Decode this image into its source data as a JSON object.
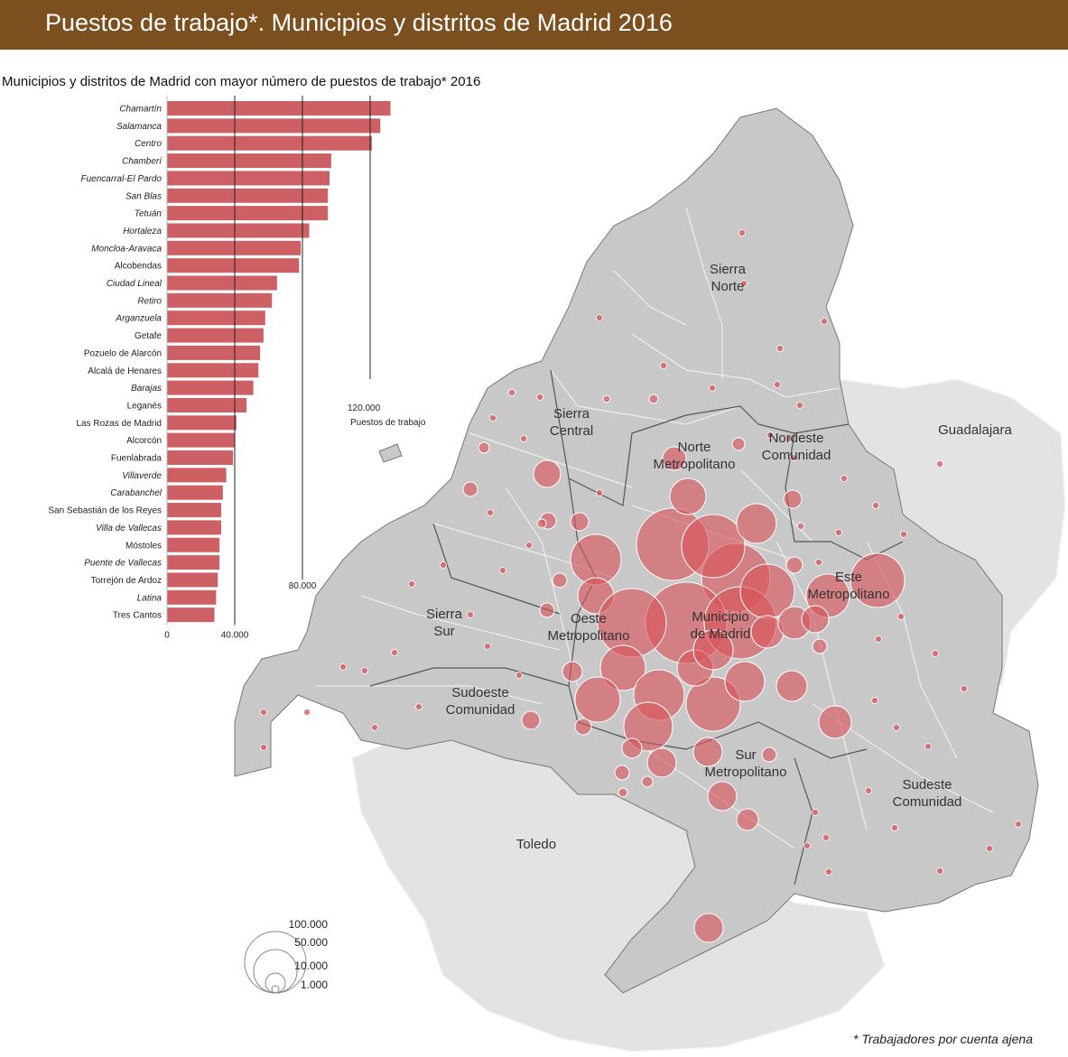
{
  "header": {
    "title": "Puestos de trabajo*. Municipios y distritos de Madrid 2016"
  },
  "colors": {
    "header_bg": "#7b4f1e",
    "bar": "#cc6064",
    "bubble": "#d9545a",
    "map_region": "#c8c8c8",
    "map_outside": "#e3e3e3"
  },
  "chart_data": {
    "type": "bar",
    "orientation": "horizontal",
    "title": "Municipios y distritos de Madrid con mayor número de puestos de trabajo* 2016",
    "categories": [
      "Chamartín",
      "Salamanca",
      "Centro",
      "Chamberí",
      "Fuencarral-El Pardo",
      "San Blas",
      "Tetuán",
      "Hortaleza",
      "Moncloa-Aravaca",
      "Alcobendas",
      "Ciudad Lineal",
      "Retiro",
      "Arganzuela",
      "Getafe",
      "Pozuelo de Alarcón",
      "Alcalá de Henares",
      "Barajas",
      "Leganés",
      "Las Rozas de Madrid",
      "Alcorcón",
      "Fuenlabrada",
      "Villaverde",
      "Carabanchel",
      "San Sebastián de los Reyes",
      "Villa de Vallecas",
      "Móstoles",
      "Puente de Vallecas",
      "Torrejón de Ardoz",
      "Latina",
      "Tres Cantos"
    ],
    "italic": [
      true,
      true,
      true,
      true,
      true,
      true,
      true,
      true,
      true,
      false,
      true,
      true,
      true,
      false,
      false,
      false,
      true,
      false,
      false,
      false,
      false,
      true,
      true,
      false,
      true,
      false,
      true,
      false,
      true,
      false
    ],
    "values": [
      132000,
      126000,
      121000,
      97000,
      96000,
      95000,
      95000,
      84000,
      79000,
      78000,
      65000,
      62000,
      58000,
      57000,
      55000,
      54000,
      51000,
      47000,
      41000,
      40000,
      39000,
      35000,
      33000,
      32000,
      32000,
      31000,
      31000,
      30000,
      29000,
      28000
    ],
    "x_ticks": [
      "0",
      "40.000",
      "80.000",
      "120.000"
    ],
    "x_tick_values": [
      0,
      40000,
      80000,
      120000
    ],
    "x_unit_label": "Puestos de trabajo",
    "xlim": [
      0,
      140000
    ]
  },
  "map": {
    "labels": [
      {
        "lines": [
          "Sierra",
          "Norte"
        ]
      },
      {
        "lines": [
          "Sierra",
          "Central"
        ]
      },
      {
        "lines": [
          "Norte",
          "Metropolitano"
        ]
      },
      {
        "lines": [
          "Nordeste",
          "Comunidad"
        ]
      },
      {
        "lines": [
          "Guadalajara"
        ]
      },
      {
        "lines": [
          "Este",
          "Metropolitano"
        ]
      },
      {
        "lines": [
          "Oeste",
          "Metropolitano"
        ]
      },
      {
        "lines": [
          "Municipio",
          "de Madrid"
        ]
      },
      {
        "lines": [
          "Sierra",
          "Sur"
        ]
      },
      {
        "lines": [
          "Sudoeste",
          "Comunidad"
        ]
      },
      {
        "lines": [
          "Sur",
          "Metropolitano"
        ]
      },
      {
        "lines": [
          "Sudeste",
          "Comunidad"
        ]
      },
      {
        "lines": [
          "Toledo"
        ]
      }
    ]
  },
  "legend": {
    "labels": [
      "100.000",
      "50.000",
      "10.000",
      "1.000"
    ],
    "values": [
      100000,
      50000,
      10000,
      1000
    ]
  },
  "footnote": "* Trabajadores por cuenta ajena"
}
